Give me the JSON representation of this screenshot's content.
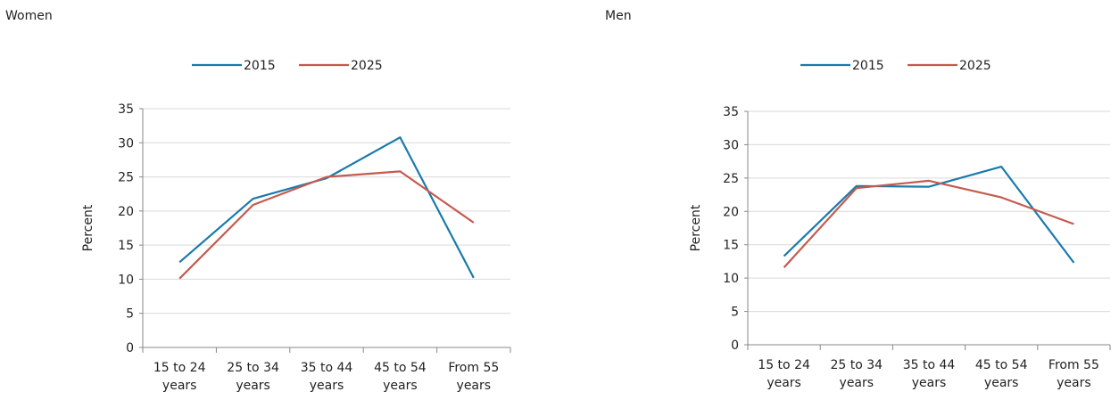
{
  "chart_data": [
    {
      "type": "line",
      "panel_title": "Women",
      "ylabel": "Percent",
      "ylim": [
        0,
        35
      ],
      "yticks": [
        0,
        5,
        10,
        15,
        20,
        25,
        30,
        35
      ],
      "categories": [
        [
          "15 to 24",
          "years"
        ],
        [
          "25 to 34",
          "years"
        ],
        [
          "35 to 44",
          "years"
        ],
        [
          "45 to 54",
          "years"
        ],
        [
          "From 55",
          "years"
        ]
      ],
      "legend_position": "top-center",
      "series": [
        {
          "name": "2015",
          "color": "#1a7aab",
          "values": [
            12.5,
            21.8,
            24.8,
            30.8,
            10.2
          ]
        },
        {
          "name": "2025",
          "color": "#c55a4f",
          "values": [
            10.1,
            20.9,
            25.0,
            25.8,
            18.3
          ]
        }
      ]
    },
    {
      "type": "line",
      "panel_title": "Men",
      "ylabel": "Percent",
      "ylim": [
        0,
        35
      ],
      "yticks": [
        0,
        5,
        10,
        15,
        20,
        25,
        30,
        35
      ],
      "categories": [
        [
          "15 to 24",
          "years"
        ],
        [
          "25 to 34",
          "years"
        ],
        [
          "35 to 44",
          "years"
        ],
        [
          "45 to 54",
          "years"
        ],
        [
          "From 55",
          "years"
        ]
      ],
      "legend_position": "top-center",
      "series": [
        {
          "name": "2015",
          "color": "#1a7aab",
          "values": [
            13.3,
            23.8,
            23.7,
            26.7,
            12.3
          ]
        },
        {
          "name": "2025",
          "color": "#c55a4f",
          "values": [
            11.6,
            23.5,
            24.6,
            22.1,
            18.1
          ]
        }
      ]
    }
  ]
}
